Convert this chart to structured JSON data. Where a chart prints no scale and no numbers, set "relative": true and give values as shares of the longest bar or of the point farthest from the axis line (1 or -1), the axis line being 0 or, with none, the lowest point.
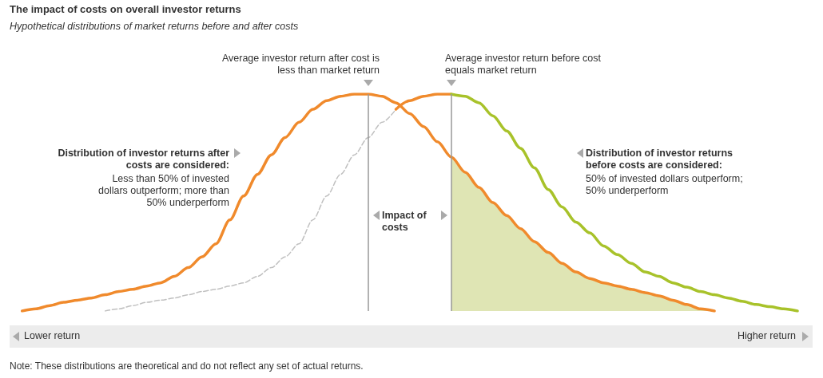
{
  "chart_data": {
    "type": "line",
    "title": "The impact of costs on overall investor returns",
    "subtitle": "Hypothetical distributions of market returns before and after costs",
    "relative": true,
    "grid": false,
    "marker": "none",
    "categories": [
      null,
      null,
      null,
      null,
      null,
      null,
      null,
      null,
      null,
      null,
      null,
      null,
      null,
      null,
      null,
      null,
      null,
      null,
      null,
      null,
      null,
      null,
      null,
      null,
      null,
      null,
      null,
      null,
      null,
      null,
      null,
      null,
      null,
      null,
      null,
      null,
      null,
      null,
      null,
      null,
      null,
      null,
      null,
      null,
      null,
      null,
      null,
      null,
      null,
      null,
      null,
      null,
      null,
      null,
      null,
      null,
      null
    ],
    "series": [
      {
        "color": "#f08a2c",
        "values": [
          0,
          0.01,
          0.025,
          0.04,
          0.05,
          0.06,
          0.075,
          0.09,
          0.1,
          0.115,
          0.13,
          0.16,
          0.2,
          0.25,
          0.31,
          0.42,
          0.53,
          0.63,
          0.72,
          0.8,
          0.87,
          0.93,
          0.97,
          0.99,
          1,
          1,
          0.99,
          0.96,
          0.91,
          0.85,
          0.78,
          0.71,
          0.64,
          0.57,
          0.5,
          0.44,
          0.38,
          0.32,
          0.27,
          0.22,
          0.18,
          0.15,
          0.13,
          0.115,
          0.1,
          0.085,
          0.07,
          0.05,
          0.03,
          0.01,
          0,
          null,
          null,
          null,
          null,
          null,
          null
        ]
      },
      {
        "color": "#c0c0c0",
        "line_style": "dashed",
        "values": [
          null,
          null,
          null,
          null,
          null,
          null,
          0,
          0.01,
          0.025,
          0.04,
          0.05,
          0.06,
          0.075,
          0.09,
          0.1,
          0.115,
          0.13,
          0.16,
          0.2,
          0.25,
          0.31,
          0.42,
          0.53,
          0.63,
          0.72,
          0.8,
          0.87,
          0.93,
          null,
          null,
          null,
          null,
          null,
          null,
          null,
          null,
          null,
          null,
          null,
          null,
          null,
          null,
          null,
          null,
          null,
          null,
          null,
          null,
          null,
          null,
          null,
          null,
          null,
          null,
          null,
          null,
          null
        ]
      },
      {
        "color": "#f08a2c",
        "values": [
          null,
          null,
          null,
          null,
          null,
          null,
          null,
          null,
          null,
          null,
          null,
          null,
          null,
          null,
          null,
          null,
          null,
          null,
          null,
          null,
          null,
          null,
          null,
          null,
          null,
          null,
          null,
          0.93,
          0.97,
          0.99,
          1,
          1,
          null,
          null,
          null,
          null,
          null,
          null,
          null,
          null,
          null,
          null,
          null,
          null,
          null,
          null,
          null,
          null,
          null,
          null,
          null,
          null,
          null,
          null,
          null,
          null,
          null
        ]
      },
      {
        "color": "#a8c22a",
        "values": [
          null,
          null,
          null,
          null,
          null,
          null,
          null,
          null,
          null,
          null,
          null,
          null,
          null,
          null,
          null,
          null,
          null,
          null,
          null,
          null,
          null,
          null,
          null,
          null,
          null,
          null,
          null,
          null,
          null,
          null,
          null,
          1,
          0.99,
          0.96,
          0.9,
          0.83,
          0.75,
          0.66,
          0.56,
          0.48,
          0.41,
          0.36,
          0.3,
          0.26,
          0.22,
          0.18,
          0.16,
          0.13,
          0.11,
          0.09,
          0.075,
          0.06,
          0.045,
          0.03,
          0.02,
          0.01,
          0
        ]
      },
      {
        "type": "area",
        "color": "#dfe5b4",
        "values": [
          null,
          null,
          null,
          null,
          null,
          null,
          null,
          null,
          null,
          null,
          null,
          null,
          null,
          null,
          null,
          null,
          null,
          null,
          null,
          null,
          null,
          null,
          null,
          null,
          null,
          null,
          null,
          null,
          null,
          null,
          null,
          0.71,
          0.64,
          0.57,
          0.5,
          0.44,
          0.38,
          0.32,
          0.27,
          0.22,
          0.18,
          0.15,
          0.13,
          0.115,
          0.1,
          0.085,
          0.07,
          0.05,
          0.03,
          0.01,
          0,
          null,
          null,
          null,
          null,
          null,
          null
        ]
      }
    ],
    "annotations": [
      "Average investor return after cost is less than market return",
      "Average investor return before cost equals market return",
      "Distribution of investor returns after costs are considered:",
      "Less than 50% of invested dollars outperform; more than 50% underperform",
      "Distribution of investor returns before costs are considered:",
      "50% of invested dollars outperform; 50% underperform",
      "Impact of costs",
      "Lower return",
      "Higher return",
      "Note: These distributions are theoretical and do not reflect any set of actual returns."
    ]
  }
}
